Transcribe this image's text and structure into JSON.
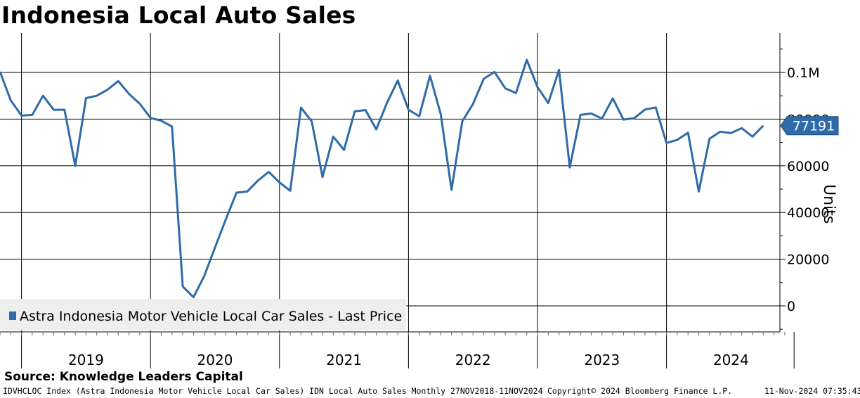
{
  "title": "Indonesia Local Auto Sales",
  "source": "Source: Knowledge Leaders Capital",
  "footer": {
    "left": "IDVHCLOC Index (Astra Indonesia Motor Vehicle Local Car Sales) IDN Local Auto Sales  Monthly 27NOV2018-11NOV2024",
    "middle": "Copyright© 2024 Bloomberg Finance L.P.",
    "right": "11-Nov-2024 07:35:43"
  },
  "colors": {
    "series": "#2e6ba8",
    "grid": "#000000",
    "legend_bg": "#eeeeee"
  },
  "chart_data": {
    "type": "line",
    "title": "Indonesia Local Auto Sales",
    "ylabel": "Units",
    "ylim": [
      -11000,
      115000
    ],
    "yticks": [
      0,
      20000,
      40000,
      60000,
      80000,
      100000
    ],
    "ytick_labels": [
      "0",
      "20000",
      "40000",
      "60000",
      "80000",
      "0.1M"
    ],
    "year_labels": [
      "2019",
      "2020",
      "2021",
      "2022",
      "2023",
      "2024"
    ],
    "grid": true,
    "legend_position": "bottom-left",
    "last_value_label": "77191",
    "series": [
      {
        "name": "Astra Indonesia Motor Vehicle Local Car Sales - Last Price",
        "x": [
          "2018-11",
          "2018-12",
          "2019-01",
          "2019-02",
          "2019-03",
          "2019-04",
          "2019-05",
          "2019-06",
          "2019-07",
          "2019-08",
          "2019-09",
          "2019-10",
          "2019-11",
          "2019-12",
          "2020-01",
          "2020-02",
          "2020-03",
          "2020-04",
          "2020-05",
          "2020-06",
          "2020-07",
          "2020-08",
          "2020-09",
          "2020-10",
          "2020-11",
          "2020-12",
          "2021-01",
          "2021-02",
          "2021-03",
          "2021-04",
          "2021-05",
          "2021-06",
          "2021-07",
          "2021-08",
          "2021-09",
          "2021-10",
          "2021-11",
          "2021-12",
          "2022-01",
          "2022-02",
          "2022-03",
          "2022-04",
          "2022-05",
          "2022-06",
          "2022-07",
          "2022-08",
          "2022-09",
          "2022-10",
          "2022-11",
          "2022-12",
          "2023-01",
          "2023-02",
          "2023-03",
          "2023-04",
          "2023-05",
          "2023-06",
          "2023-07",
          "2023-08",
          "2023-09",
          "2023-10",
          "2023-11",
          "2023-12",
          "2024-01",
          "2024-02",
          "2024-03",
          "2024-04",
          "2024-05",
          "2024-06",
          "2024-07",
          "2024-08",
          "2024-09",
          "2024-10"
        ],
        "values": [
          100300,
          88000,
          81500,
          81800,
          90000,
          84000,
          84000,
          60000,
          89000,
          90000,
          92600,
          96300,
          90800,
          86600,
          80500,
          79300,
          76800,
          8300,
          3700,
          12800,
          25000,
          37000,
          48500,
          49000,
          53700,
          57400,
          52900,
          49300,
          84900,
          79000,
          55200,
          72500,
          66800,
          83300,
          83900,
          75600,
          87000,
          96500,
          84000,
          81200,
          98600,
          82100,
          49700,
          79000,
          86500,
          97300,
          100200,
          93200,
          91200,
          105400,
          93700,
          86900,
          101100,
          59300,
          81800,
          82400,
          80200,
          88900,
          79800,
          80400,
          84100,
          85000,
          69800,
          71100,
          74200,
          49000,
          71600,
          74600,
          74000,
          76100,
          72500,
          77191
        ]
      }
    ]
  }
}
